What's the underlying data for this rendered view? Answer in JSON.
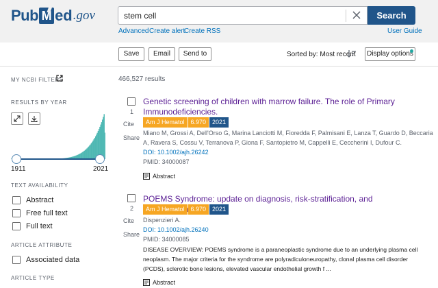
{
  "header": {
    "logo": {
      "pub": "Pub",
      "m": "M",
      "ed": "ed",
      "gov": ".gov"
    },
    "search": {
      "value": "stem cell",
      "button_label": "Search"
    },
    "links": {
      "advanced": "Advanced",
      "create_alert": "Create alert",
      "create_rss": "Create RSS",
      "user_guide": "User Guide"
    }
  },
  "toolbar": {
    "save_label": "Save",
    "email_label": "Email",
    "send_to_label": "Send to",
    "sorted_label": "Sorted by: Most recent",
    "display_options_label": "Display options"
  },
  "sidebar": {
    "my_ncbi_filters": "MY NCBI FILTERS",
    "results_by_year": "RESULTS BY YEAR",
    "year_start": "1911",
    "year_end": "2021",
    "text_availability": "TEXT AVAILABILITY",
    "text_filters": [
      "Abstract",
      "Free full text",
      "Full text"
    ],
    "article_attribute": "ARTICLE ATTRIBUTE",
    "attribute_filters": [
      "Associated data"
    ],
    "article_type": "ARTICLE TYPE"
  },
  "results": {
    "count": "466,527 results",
    "articles": [
      {
        "number": "1",
        "cite": "Cite",
        "share": "Share",
        "title_lines": [
          "Genetic screening of children with marrow failure. The role of Primary",
          "Immunodeficiencies."
        ],
        "journal": "Am J Hematol",
        "impact": "6.970",
        "year": "2021",
        "authors_lines": [
          "Miano M, Grossi A, Dell'Orso G, Marina Lanciotti M, Fioredda F, Palmisani E, Lanza T, Guardo D, Beccaria",
          "A, Ravera S, Cossu V, Terranova P, Giona F, Santopietro M, Cappelli E, Ceccherini I, Dufour C."
        ],
        "doi": "DOI: 10.1002/ajh.26242",
        "pmid": "PMID: 34000087",
        "abstract_label": "Abstract"
      },
      {
        "number": "2",
        "cite": "Cite",
        "share": "Share",
        "title_lines": [
          "POEMS Syndrome: update on diagnosis, risk-stratification, and management."
        ],
        "journal": "Am J Hematol",
        "impact": "6.970",
        "year": "2021",
        "authors_lines": [
          "Dispenzieri A."
        ],
        "doi": "DOI: 10.1002/ajh.26240",
        "pmid": "PMID: 34000085",
        "snippet_lines": [
          "DISEASE OVERVIEW: POEMS syndrome is a paraneoplastic syndrome due to an underlying plasma cell",
          "neoplasm. The major criteria for the syndrome are polyradiculoneuropathy, clonal plasma cell disorder",
          "(PCDS), sclerotic bone lesions, elevated vascular endothelial growth f ..."
        ],
        "abstract_label": "Abstract"
      }
    ]
  },
  "colors": {
    "brand": "#20558a",
    "link": "#0071bc",
    "title_visited": "#5b1f94",
    "badge_orange": "#f6a623",
    "badge_blue": "#20558a"
  }
}
